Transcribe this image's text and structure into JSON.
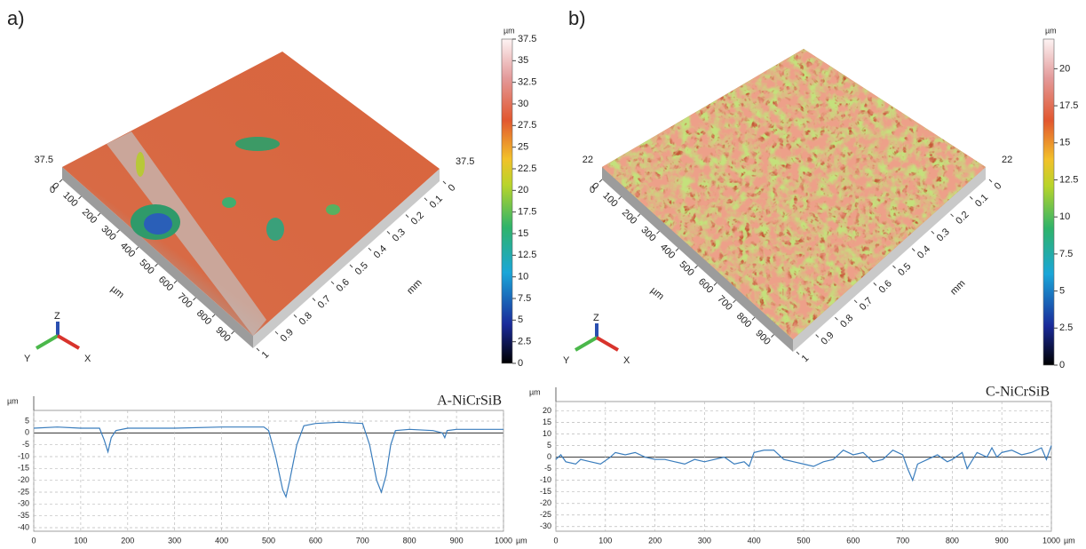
{
  "panels": [
    {
      "label": "a)",
      "colorbar_unit": "µm",
      "colorbar_lim": [
        0,
        37.5
      ],
      "colorbar_ticks": [
        0,
        2.5,
        5,
        7.5,
        10,
        12.5,
        15,
        17.5,
        20,
        22.5,
        25,
        27.5,
        30,
        32.5,
        35,
        37.5
      ],
      "z_max_label": "37.5",
      "x_ticks": [
        0,
        100,
        200,
        300,
        400,
        500,
        600,
        700,
        800,
        900
      ],
      "x_label": "µm",
      "y_ticks": [
        0,
        0.1,
        0.2,
        0.3,
        0.4,
        0.5,
        0.6,
        0.7,
        0.8,
        0.9,
        1
      ],
      "y_label": "mm",
      "triad": [
        "Z",
        "Y",
        "X"
      ]
    },
    {
      "label": "b)",
      "colorbar_unit": "µm",
      "colorbar_lim": [
        0,
        22
      ],
      "colorbar_ticks": [
        0,
        2.5,
        5,
        7.5,
        10,
        12.5,
        15,
        17.5,
        20
      ],
      "z_max_label": "22",
      "x_ticks": [
        0,
        100,
        200,
        300,
        400,
        500,
        600,
        700,
        800,
        900
      ],
      "x_label": "µm",
      "y_ticks": [
        0,
        0.1,
        0.2,
        0.3,
        0.4,
        0.5,
        0.6,
        0.7,
        0.8,
        0.9,
        1
      ],
      "y_label": "mm",
      "triad": [
        "Z",
        "Y",
        "X"
      ]
    }
  ],
  "chart_data": [
    {
      "type": "line",
      "title": "A-NiCrSiB",
      "x_unit": "µm",
      "y_unit": "µm",
      "xlim": [
        0,
        1000
      ],
      "xticks": [
        0,
        100,
        200,
        300,
        400,
        500,
        600,
        700,
        800,
        900,
        1000
      ],
      "ylim": [
        -41.5,
        9.5
      ],
      "yticks": [
        5,
        0,
        -5,
        -10,
        -15,
        -20,
        -25,
        -30,
        -35,
        -40
      ],
      "grid": true,
      "series": [
        {
          "name": "A-NiCrSiB",
          "color": "#3a7dbd",
          "x": [
            0,
            50,
            100,
            140,
            150,
            158,
            165,
            175,
            200,
            300,
            400,
            490,
            500,
            515,
            530,
            537,
            545,
            560,
            575,
            600,
            650,
            700,
            705,
            715,
            730,
            740,
            750,
            760,
            770,
            800,
            850,
            870,
            875,
            880,
            900,
            1000
          ],
          "values": [
            2,
            2.5,
            2,
            2,
            -3,
            -8,
            -2,
            1,
            2,
            2,
            2.5,
            2.5,
            1,
            -10,
            -24,
            -27,
            -20,
            -5,
            3,
            4,
            4.5,
            4,
            1,
            -5,
            -20,
            -25,
            -18,
            -5,
            1,
            1.5,
            1,
            0,
            -2,
            1,
            1.5,
            1.5
          ]
        }
      ]
    },
    {
      "type": "line",
      "title": "C-NiCrSiB",
      "x_unit": "µm",
      "y_unit": "µm",
      "xlim": [
        0,
        1000
      ],
      "xticks": [
        0,
        100,
        200,
        300,
        400,
        500,
        600,
        700,
        800,
        900,
        1000
      ],
      "ylim": [
        -32,
        24
      ],
      "yticks": [
        20,
        15,
        10,
        5,
        0,
        -5,
        -10,
        -15,
        -20,
        -25,
        -30
      ],
      "grid": true,
      "series": [
        {
          "name": "C-NiCrSiB",
          "color": "#3a7dbd",
          "x": [
            0,
            10,
            20,
            40,
            50,
            70,
            90,
            110,
            120,
            140,
            160,
            180,
            200,
            220,
            240,
            260,
            280,
            300,
            320,
            340,
            360,
            380,
            390,
            400,
            420,
            440,
            460,
            480,
            500,
            520,
            540,
            560,
            580,
            600,
            620,
            640,
            660,
            680,
            700,
            710,
            720,
            730,
            750,
            770,
            790,
            800,
            820,
            830,
            850,
            870,
            880,
            890,
            900,
            920,
            940,
            960,
            980,
            990,
            1000
          ],
          "values": [
            -1,
            1,
            -2,
            -3,
            -1,
            -2,
            -3,
            0,
            2,
            1,
            2,
            0,
            -1,
            -1,
            -2,
            -3,
            -1,
            -2,
            -1,
            0,
            -3,
            -2,
            -4,
            2,
            3,
            3,
            -1,
            -2,
            -3,
            -4,
            -2,
            -1,
            3,
            1,
            2,
            -2,
            -1,
            3,
            1,
            -5,
            -10,
            -3,
            -1,
            1,
            -2,
            -1,
            2,
            -5,
            2,
            0,
            4,
            0,
            2,
            3,
            1,
            2,
            4,
            -1,
            5
          ]
        }
      ]
    }
  ]
}
